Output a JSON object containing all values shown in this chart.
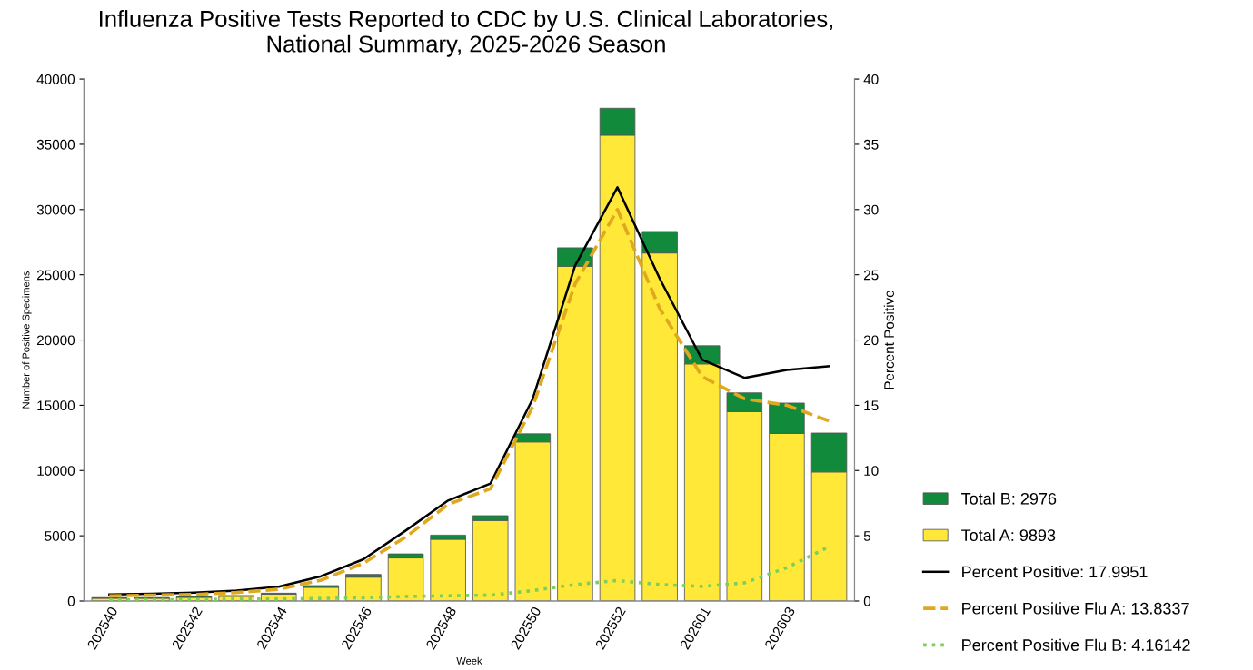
{
  "chart_data": {
    "type": "bar",
    "title": "Influenza Positive Tests Reported to CDC by U.S. Clinical Laboratories,\nNational Summary, 2025-2026 Season",
    "xlabel": "Week",
    "ylabel": "Number of Positive Specimens",
    "y2label": "Percent Positive",
    "categories": [
      "202540",
      null,
      "202542",
      null,
      "202544",
      null,
      "202546",
      null,
      "202548",
      null,
      "202550",
      null,
      "202552",
      null,
      "202601",
      null,
      "202603",
      null
    ],
    "stacked": true,
    "series": [
      {
        "name": "Total A: 9893",
        "color": "#ffe838",
        "values": [
          210,
          210,
          280,
          360,
          530,
          1050,
          1830,
          3300,
          4730,
          6170,
          12190,
          25650,
          35700,
          26670,
          18170,
          14510,
          12840,
          9890
        ]
      },
      {
        "name": "Total B: 2976",
        "color": "#118a3c",
        "values": [
          50,
          50,
          60,
          60,
          70,
          130,
          210,
          310,
          320,
          370,
          620,
          1420,
          2060,
          1650,
          1390,
          1440,
          2330,
          2980
        ]
      },
      {
        "name": "Percent Positive: 17.9951",
        "type": "line",
        "axis": "y2",
        "color": "#000000",
        "line_style": "solid",
        "values": [
          0.5,
          0.55,
          0.65,
          0.8,
          1.1,
          1.9,
          3.2,
          5.4,
          7.7,
          9.0,
          15.5,
          25.7,
          31.7,
          24.7,
          18.5,
          17.1,
          17.7,
          18.0
        ]
      },
      {
        "name": "Percent Positive Flu A: 13.8337",
        "type": "line",
        "axis": "y2",
        "color": "#e0a81f",
        "line_style": "dashed",
        "values": [
          0.4,
          0.45,
          0.5,
          0.65,
          0.9,
          1.6,
          2.9,
          4.9,
          7.4,
          8.6,
          14.9,
          24.3,
          30.0,
          22.4,
          17.2,
          15.5,
          15.0,
          13.8
        ]
      },
      {
        "name": "Percent Positive Flu B: 4.16142",
        "type": "line",
        "axis": "y2",
        "color": "#7ccf5c",
        "line_style": "dotted",
        "values": [
          0.1,
          0.1,
          0.1,
          0.15,
          0.15,
          0.2,
          0.25,
          0.35,
          0.4,
          0.45,
          0.8,
          1.26,
          1.57,
          1.26,
          1.12,
          1.39,
          2.56,
          4.16
        ]
      }
    ],
    "ylim": [
      0,
      40000
    ],
    "yticks": [
      0,
      5000,
      10000,
      15000,
      20000,
      25000,
      30000,
      35000,
      40000
    ],
    "y2lim": [
      0,
      40
    ],
    "y2ticks": [
      0,
      5,
      10,
      15,
      20,
      25,
      30,
      35,
      40
    ],
    "grid": false,
    "legend": "bottom right",
    "marker": "none"
  }
}
